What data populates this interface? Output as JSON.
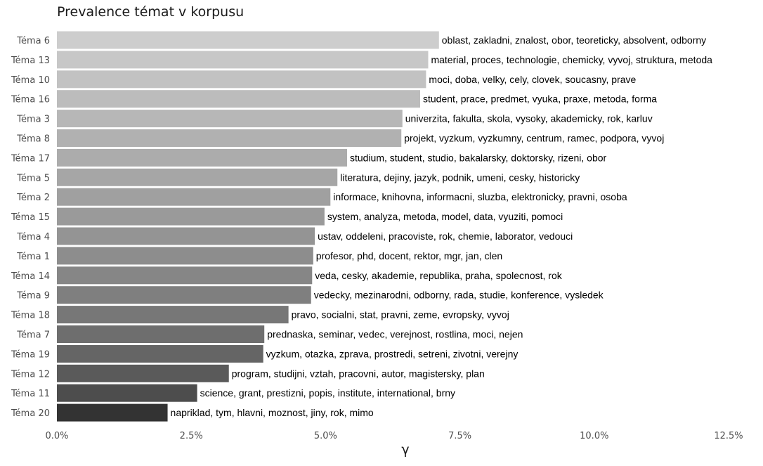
{
  "chart_data": {
    "type": "bar",
    "orientation": "horizontal",
    "title": "Prevalence témat v korpusu",
    "xlabel": "γ",
    "ylabel": "",
    "xlim": [
      0,
      0.125
    ],
    "x_ticks": [
      0,
      0.025,
      0.05,
      0.075,
      0.1,
      0.125
    ],
    "x_tick_labels": [
      "0.0%",
      "2.5%",
      "5.0%",
      "7.5%",
      "10.0%",
      "12.5%"
    ],
    "grid": false,
    "legend": "none",
    "categories": [
      "Téma 6",
      "Téma 13",
      "Téma 10",
      "Téma 16",
      "Téma 3",
      "Téma 8",
      "Téma 17",
      "Téma 5",
      "Téma 2",
      "Téma 15",
      "Téma 4",
      "Téma 1",
      "Téma 14",
      "Téma 9",
      "Téma 18",
      "Téma 7",
      "Téma 19",
      "Téma 12",
      "Téma 11",
      "Téma 20"
    ],
    "values": [
      0.0711,
      0.0691,
      0.0687,
      0.0676,
      0.0643,
      0.0641,
      0.054,
      0.0522,
      0.0509,
      0.0498,
      0.048,
      0.0477,
      0.0475,
      0.0473,
      0.0431,
      0.0386,
      0.0384,
      0.032,
      0.0261,
      0.0206
    ],
    "labels": [
      "oblast, zakladni, znalost, obor, teoreticky, absolvent, odborny",
      "material, proces, technologie, chemicky, vyvoj, struktura, metoda",
      "moci, doba, velky, cely, clovek, soucasny, prave",
      "student, prace, predmet, vyuka, praxe, metoda, forma",
      "univerzita, fakulta, skola, vysoky, akademicky, rok, karluv",
      "projekt, vyzkum, vyzkumny, centrum, ramec, podpora, vyvoj",
      "studium, student, studio, bakalarsky, doktorsky, rizeni, obor",
      "literatura, dejiny, jazyk, podnik, umeni, cesky, historicky",
      "informace, knihovna, informacni, sluzba, elektronicky, pravni, osoba",
      "system, analyza, metoda, model, data, vyuziti, pomoci",
      "ustav, oddeleni, pracoviste, rok, chemie, laborator, vedouci",
      "profesor, phd, docent, rektor, mgr, jan, clen",
      "veda, cesky, akademie, republika, praha, spolecnost, rok",
      "vedecky, mezinarodni, odborny, rada, studie, konference, vysledek",
      "pravo, socialni, stat, pravni, zeme, evropsky, vyvoj",
      "prednaska, seminar, vedec, verejnost, rostlina, moci, nejen",
      "vyzkum, otazka, zprava, prostredi, setreni, zivotni, verejny",
      "program, studijni, vztah, pracovni, autor, magistersky, plan",
      "science, grant, prestizni, popis, institute, international, brny",
      "napriklad, tym, hlavni, moznost, jiny, rok, mimo"
    ],
    "colors": [
      "#cdcdcd",
      "#c7c7c7",
      "#c2c2c2",
      "#bcbcbc",
      "#b7b7b7",
      "#b1b1b1",
      "#acacac",
      "#a6a6a6",
      "#a0a0a0",
      "#9a9a9a",
      "#949494",
      "#8d8d8d",
      "#868686",
      "#7f7f7f",
      "#777777",
      "#6e6e6e",
      "#656565",
      "#5a5a5a",
      "#4d4d4d",
      "#333333"
    ]
  }
}
